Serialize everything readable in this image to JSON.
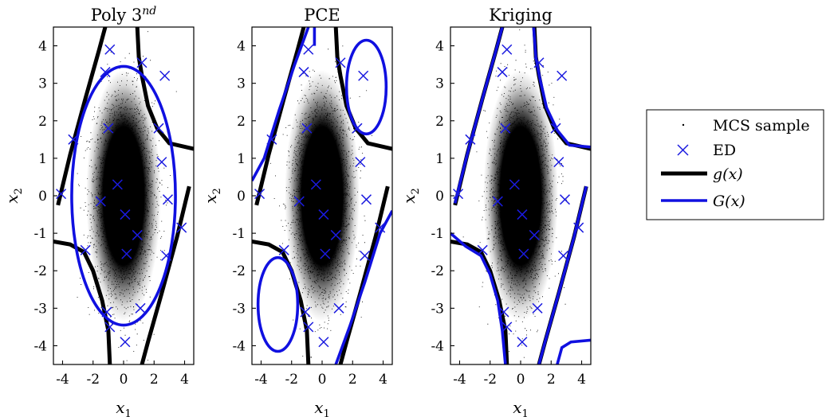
{
  "chart_data": [
    {
      "type": "scatter",
      "title": "Poly 3^nd",
      "title_main": "Poly 3",
      "title_sup": "nd",
      "xlabel": "x1",
      "ylabel": "x2",
      "xlim": [
        -4.6,
        4.6
      ],
      "ylim": [
        -4.5,
        4.5
      ],
      "xticks": [
        -4,
        -2,
        0,
        2,
        4
      ],
      "yticks": [
        -4,
        -3,
        -2,
        -1,
        0,
        1,
        2,
        3,
        4
      ],
      "ed_points": [
        [
          -0.9,
          3.9
        ],
        [
          1.2,
          3.55
        ],
        [
          -1.2,
          3.3
        ],
        [
          2.7,
          3.2
        ],
        [
          -1.0,
          1.8
        ],
        [
          -3.3,
          1.5
        ],
        [
          2.3,
          1.8
        ],
        [
          2.5,
          0.9
        ],
        [
          -0.4,
          0.3
        ],
        [
          -1.5,
          -0.15
        ],
        [
          0.1,
          -0.5
        ],
        [
          0.9,
          -1.05
        ],
        [
          3.8,
          -0.85
        ],
        [
          -2.5,
          -1.45
        ],
        [
          0.2,
          -1.55
        ],
        [
          2.8,
          -1.6
        ],
        [
          -1.1,
          -3.1
        ],
        [
          -0.9,
          -3.5
        ],
        [
          1.1,
          -3.0
        ],
        [
          0.1,
          -3.9
        ],
        [
          -4.1,
          0.05
        ],
        [
          2.9,
          -0.1
        ]
      ],
      "g_curves": [
        [
          [
            -4.3,
            -0.25
          ],
          [
            -3.5,
            1.1
          ],
          [
            -2.5,
            2.6
          ],
          [
            -1.6,
            3.9
          ],
          [
            -1.2,
            4.5
          ]
        ],
        [
          [
            0.9,
            4.5
          ],
          [
            1.0,
            3.7
          ],
          [
            1.2,
            3.2
          ],
          [
            1.6,
            2.4
          ],
          [
            2.2,
            1.8
          ],
          [
            3.0,
            1.4
          ],
          [
            4.6,
            1.25
          ]
        ],
        [
          [
            -4.6,
            -1.22
          ],
          [
            -3.5,
            -1.3
          ],
          [
            -2.6,
            -1.5
          ],
          [
            -2.0,
            -2.0
          ],
          [
            -1.4,
            -2.8
          ],
          [
            -1.0,
            -3.6
          ],
          [
            -0.9,
            -4.5
          ]
        ],
        [
          [
            4.3,
            0.25
          ],
          [
            3.5,
            -1.1
          ],
          [
            2.5,
            -2.6
          ],
          [
            1.6,
            -3.9
          ],
          [
            1.2,
            -4.5
          ]
        ]
      ],
      "G_curves": [
        {
          "kind": "ellipse",
          "cx": 0.0,
          "cy": 0.0,
          "rx": 3.4,
          "ry": 3.45
        }
      ]
    },
    {
      "type": "scatter",
      "title": "PCE",
      "title_main": "PCE",
      "title_sup": "",
      "xlabel": "x1",
      "ylabel": "x2",
      "xlim": [
        -4.6,
        4.6
      ],
      "ylim": [
        -4.5,
        4.5
      ],
      "xticks": [
        -4,
        -2,
        0,
        2,
        4
      ],
      "yticks": [
        -4,
        -3,
        -2,
        -1,
        0,
        1,
        2,
        3,
        4
      ],
      "ed_points": [
        [
          -0.9,
          3.9
        ],
        [
          1.2,
          3.55
        ],
        [
          -1.2,
          3.3
        ],
        [
          2.7,
          3.2
        ],
        [
          -1.0,
          1.8
        ],
        [
          -3.3,
          1.5
        ],
        [
          2.3,
          1.8
        ],
        [
          2.5,
          0.9
        ],
        [
          -0.4,
          0.3
        ],
        [
          -1.5,
          -0.15
        ],
        [
          0.1,
          -0.5
        ],
        [
          0.9,
          -1.05
        ],
        [
          3.8,
          -0.85
        ],
        [
          -2.5,
          -1.45
        ],
        [
          0.2,
          -1.55
        ],
        [
          2.8,
          -1.6
        ],
        [
          -1.1,
          -3.1
        ],
        [
          -0.9,
          -3.5
        ],
        [
          1.1,
          -3.0
        ],
        [
          0.1,
          -3.9
        ],
        [
          -4.1,
          0.05
        ],
        [
          2.9,
          -0.1
        ]
      ],
      "g_curves": [
        [
          [
            -4.3,
            -0.25
          ],
          [
            -3.5,
            1.1
          ],
          [
            -2.5,
            2.6
          ],
          [
            -1.6,
            3.9
          ],
          [
            -1.2,
            4.5
          ]
        ],
        [
          [
            0.9,
            4.5
          ],
          [
            1.0,
            3.7
          ],
          [
            1.2,
            3.2
          ],
          [
            1.6,
            2.4
          ],
          [
            2.2,
            1.8
          ],
          [
            3.0,
            1.4
          ],
          [
            4.6,
            1.25
          ]
        ],
        [
          [
            -4.6,
            -1.22
          ],
          [
            -3.5,
            -1.3
          ],
          [
            -2.6,
            -1.5
          ],
          [
            -2.0,
            -2.0
          ],
          [
            -1.4,
            -2.8
          ],
          [
            -1.0,
            -3.6
          ],
          [
            -0.9,
            -4.5
          ]
        ],
        [
          [
            4.3,
            0.25
          ],
          [
            3.5,
            -1.1
          ],
          [
            2.5,
            -2.6
          ],
          [
            1.6,
            -3.9
          ],
          [
            1.2,
            -4.5
          ]
        ]
      ],
      "G_curves": [
        {
          "kind": "polyline",
          "points": [
            [
              -4.6,
              0.4
            ],
            [
              -3.8,
              1.0
            ],
            [
              -2.8,
              2.3
            ],
            [
              -1.8,
              3.5
            ],
            [
              -0.9,
              4.5
            ]
          ]
        },
        {
          "kind": "polyline",
          "points": [
            [
              4.6,
              -0.4
            ],
            [
              3.8,
              -1.0
            ],
            [
              2.8,
              -2.3
            ],
            [
              1.8,
              -3.5
            ],
            [
              0.9,
              -4.5
            ]
          ]
        },
        {
          "kind": "ellipse",
          "cx": 2.9,
          "cy": 2.9,
          "rx": 1.3,
          "ry": 1.25
        },
        {
          "kind": "ellipse",
          "cx": -2.9,
          "cy": -2.9,
          "rx": 1.3,
          "ry": 1.25
        },
        {
          "kind": "polyline",
          "points": [
            [
              -0.5,
              4.5
            ],
            [
              -0.5,
              4.0
            ]
          ]
        }
      ]
    },
    {
      "type": "scatter",
      "title": "Kriging",
      "title_main": "Kriging",
      "title_sup": "",
      "xlabel": "x1",
      "ylabel": "x2",
      "xlim": [
        -4.6,
        4.6
      ],
      "ylim": [
        -4.5,
        4.5
      ],
      "xticks": [
        -4,
        -2,
        0,
        2,
        4
      ],
      "yticks": [
        -4,
        -3,
        -2,
        -1,
        0,
        1,
        2,
        3,
        4
      ],
      "ed_points": [
        [
          -0.9,
          3.9
        ],
        [
          1.2,
          3.55
        ],
        [
          -1.2,
          3.3
        ],
        [
          2.7,
          3.2
        ],
        [
          -1.0,
          1.8
        ],
        [
          -3.3,
          1.5
        ],
        [
          2.3,
          1.8
        ],
        [
          2.5,
          0.9
        ],
        [
          -0.4,
          0.3
        ],
        [
          -1.5,
          -0.15
        ],
        [
          0.1,
          -0.5
        ],
        [
          0.9,
          -1.05
        ],
        [
          3.8,
          -0.85
        ],
        [
          -2.5,
          -1.45
        ],
        [
          0.2,
          -1.55
        ],
        [
          2.8,
          -1.6
        ],
        [
          -1.1,
          -3.1
        ],
        [
          -0.9,
          -3.5
        ],
        [
          1.1,
          -3.0
        ],
        [
          0.1,
          -3.9
        ],
        [
          -4.1,
          0.05
        ],
        [
          2.9,
          -0.1
        ]
      ],
      "g_curves": [
        [
          [
            -4.3,
            -0.25
          ],
          [
            -3.5,
            1.1
          ],
          [
            -2.5,
            2.6
          ],
          [
            -1.6,
            3.9
          ],
          [
            -1.2,
            4.5
          ]
        ],
        [
          [
            0.9,
            4.5
          ],
          [
            1.0,
            3.7
          ],
          [
            1.2,
            3.2
          ],
          [
            1.6,
            2.4
          ],
          [
            2.2,
            1.8
          ],
          [
            3.0,
            1.4
          ],
          [
            4.6,
            1.25
          ]
        ],
        [
          [
            -4.6,
            -1.22
          ],
          [
            -3.5,
            -1.3
          ],
          [
            -2.6,
            -1.5
          ],
          [
            -2.0,
            -2.0
          ],
          [
            -1.4,
            -2.8
          ],
          [
            -1.0,
            -3.6
          ],
          [
            -0.9,
            -4.5
          ]
        ],
        [
          [
            4.3,
            0.25
          ],
          [
            3.5,
            -1.1
          ],
          [
            2.5,
            -2.6
          ],
          [
            1.6,
            -3.9
          ],
          [
            1.2,
            -4.5
          ]
        ]
      ],
      "G_curves": [
        {
          "kind": "polyline",
          "points": [
            [
              -4.3,
              -0.2
            ],
            [
              -3.5,
              1.1
            ],
            [
              -2.5,
              2.6
            ],
            [
              -1.6,
              3.9
            ],
            [
              -1.2,
              4.5
            ]
          ]
        },
        {
          "kind": "polyline",
          "points": [
            [
              0.85,
              4.5
            ],
            [
              1.0,
              3.7
            ],
            [
              1.25,
              3.15
            ],
            [
              1.7,
              2.35
            ],
            [
              2.4,
              1.75
            ],
            [
              3.2,
              1.35
            ],
            [
              4.6,
              1.3
            ]
          ]
        },
        {
          "kind": "polyline",
          "points": [
            [
              -4.6,
              -1.0
            ],
            [
              -3.6,
              -1.35
            ],
            [
              -2.6,
              -1.6
            ],
            [
              -2.0,
              -2.1
            ],
            [
              -1.5,
              -2.8
            ],
            [
              -1.2,
              -3.6
            ],
            [
              -1.0,
              -4.5
            ]
          ]
        },
        {
          "kind": "polyline",
          "points": [
            [
              4.3,
              0.25
            ],
            [
              3.5,
              -1.1
            ],
            [
              2.5,
              -2.6
            ],
            [
              1.6,
              -3.9
            ],
            [
              1.2,
              -4.5
            ]
          ]
        },
        {
          "kind": "polyline",
          "points": [
            [
              2.4,
              -4.5
            ],
            [
              2.7,
              -4.05
            ],
            [
              3.3,
              -3.9
            ],
            [
              4.6,
              -3.85
            ]
          ]
        }
      ]
    }
  ],
  "legend": {
    "entries": [
      "MCS sample",
      "ED",
      "g(x)",
      "G(x)"
    ]
  },
  "colors": {
    "sample": "#000000",
    "ed": "#1a1adf",
    "g": "#000000",
    "G": "#1010e0"
  }
}
